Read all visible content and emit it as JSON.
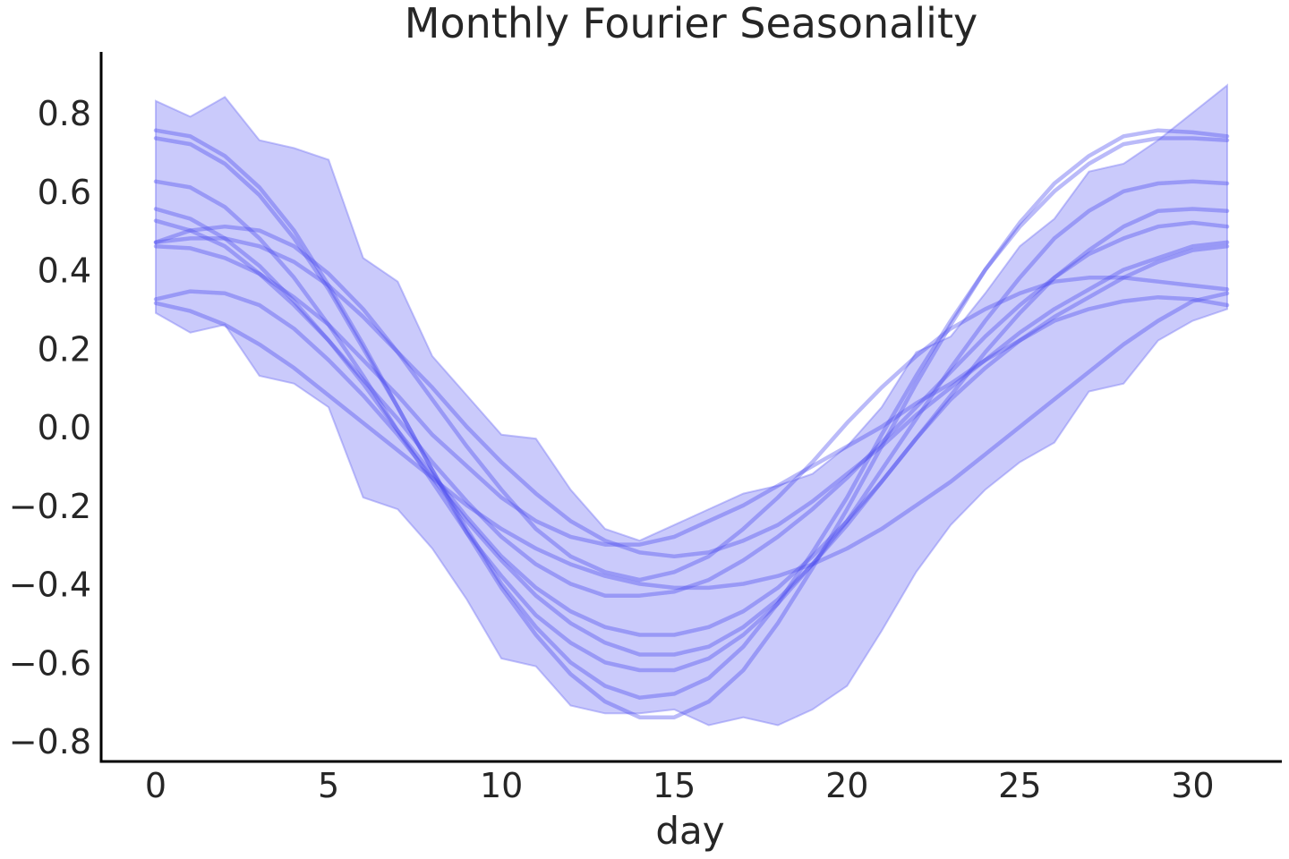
{
  "chart_data": {
    "type": "area",
    "title": "Monthly Fourier Seasonality",
    "xlabel": "day",
    "ylabel": "",
    "xlim": [
      -1.5,
      32.5
    ],
    "ylim": [
      -0.85,
      0.95
    ],
    "x_ticks": [
      0,
      5,
      10,
      15,
      20,
      25,
      30
    ],
    "y_ticks": [
      0.8,
      0.6,
      0.4,
      0.2,
      0.0,
      -0.2,
      -0.4,
      -0.6,
      -0.8
    ],
    "y_tick_labels": [
      "0.8",
      "0.6",
      "0.4",
      "0.2",
      "0.0",
      "−0.2",
      "−0.4",
      "−0.6",
      "−0.8"
    ],
    "grid": false,
    "colors": {
      "band": "#7b7bf5",
      "line": "#4a4aee",
      "axis": "#000000",
      "text": "#262626"
    },
    "x": [
      0,
      1,
      2,
      3,
      4,
      5,
      6,
      7,
      8,
      9,
      10,
      11,
      12,
      13,
      14,
      15,
      16,
      17,
      18,
      19,
      20,
      21,
      22,
      23,
      24,
      25,
      26,
      27,
      28,
      29,
      30,
      31
    ],
    "band": {
      "upper": [
        0.83,
        0.79,
        0.84,
        0.73,
        0.71,
        0.68,
        0.43,
        0.37,
        0.18,
        0.08,
        -0.02,
        -0.03,
        -0.16,
        -0.26,
        -0.29,
        -0.25,
        -0.21,
        -0.17,
        -0.15,
        -0.12,
        -0.05,
        0.05,
        0.19,
        0.23,
        0.34,
        0.46,
        0.53,
        0.65,
        0.67,
        0.73,
        0.8,
        0.87
      ],
      "lower": [
        0.29,
        0.24,
        0.26,
        0.13,
        0.11,
        0.05,
        -0.18,
        -0.21,
        -0.31,
        -0.44,
        -0.59,
        -0.61,
        -0.71,
        -0.73,
        -0.73,
        -0.72,
        -0.76,
        -0.74,
        -0.76,
        -0.72,
        -0.66,
        -0.52,
        -0.37,
        -0.25,
        -0.16,
        -0.09,
        -0.04,
        0.09,
        0.11,
        0.22,
        0.27,
        0.3
      ]
    },
    "series": [
      {
        "values": [
          0.755,
          0.74,
          0.69,
          0.61,
          0.5,
          0.36,
          0.21,
          0.05,
          -0.11,
          -0.27,
          -0.41,
          -0.53,
          -0.63,
          -0.7,
          -0.74,
          -0.74,
          -0.7,
          -0.62,
          -0.5,
          -0.36,
          -0.21,
          -0.05,
          0.11,
          0.26,
          0.4,
          0.52,
          0.62,
          0.69,
          0.74,
          0.755,
          0.75,
          0.74
        ]
      },
      {
        "values": [
          0.735,
          0.72,
          0.67,
          0.59,
          0.48,
          0.35,
          0.2,
          0.05,
          -0.11,
          -0.26,
          -0.4,
          -0.51,
          -0.6,
          -0.66,
          -0.69,
          -0.68,
          -0.64,
          -0.56,
          -0.45,
          -0.32,
          -0.18,
          -0.02,
          0.13,
          0.27,
          0.4,
          0.51,
          0.6,
          0.67,
          0.72,
          0.735,
          0.735,
          0.73
        ]
      },
      {
        "values": [
          0.625,
          0.61,
          0.56,
          0.48,
          0.38,
          0.26,
          0.13,
          -0.01,
          -0.14,
          -0.27,
          -0.38,
          -0.48,
          -0.55,
          -0.6,
          -0.62,
          -0.62,
          -0.59,
          -0.53,
          -0.45,
          -0.35,
          -0.24,
          -0.11,
          0.02,
          0.15,
          0.27,
          0.38,
          0.48,
          0.55,
          0.6,
          0.62,
          0.625,
          0.62
        ]
      },
      {
        "values": [
          0.555,
          0.53,
          0.48,
          0.41,
          0.32,
          0.22,
          0.11,
          -0.01,
          -0.12,
          -0.23,
          -0.33,
          -0.41,
          -0.47,
          -0.51,
          -0.53,
          -0.53,
          -0.51,
          -0.47,
          -0.41,
          -0.33,
          -0.24,
          -0.14,
          -0.03,
          0.08,
          0.19,
          0.29,
          0.38,
          0.45,
          0.51,
          0.55,
          0.555,
          0.55
        ]
      },
      {
        "values": [
          0.525,
          0.5,
          0.46,
          0.39,
          0.31,
          0.22,
          0.12,
          0.02,
          -0.09,
          -0.19,
          -0.28,
          -0.35,
          -0.4,
          -0.43,
          -0.43,
          -0.42,
          -0.39,
          -0.34,
          -0.28,
          -0.21,
          -0.13,
          -0.04,
          0.05,
          0.14,
          0.23,
          0.31,
          0.38,
          0.44,
          0.48,
          0.51,
          0.52,
          0.51
        ]
      },
      {
        "values": [
          0.47,
          0.48,
          0.48,
          0.46,
          0.42,
          0.36,
          0.28,
          0.19,
          0.1,
          0.0,
          -0.09,
          -0.17,
          -0.24,
          -0.29,
          -0.32,
          -0.33,
          -0.32,
          -0.29,
          -0.25,
          -0.19,
          -0.12,
          -0.05,
          0.03,
          0.1,
          0.17,
          0.24,
          0.3,
          0.35,
          0.4,
          0.43,
          0.46,
          0.47
        ]
      },
      {
        "values": [
          0.47,
          0.5,
          0.51,
          0.5,
          0.46,
          0.39,
          0.3,
          0.19,
          0.07,
          -0.05,
          -0.16,
          -0.26,
          -0.33,
          -0.37,
          -0.39,
          -0.37,
          -0.33,
          -0.26,
          -0.18,
          -0.09,
          0.01,
          0.1,
          0.18,
          0.25,
          0.3,
          0.34,
          0.37,
          0.38,
          0.38,
          0.37,
          0.36,
          0.35
        ]
      },
      {
        "values": [
          0.46,
          0.455,
          0.43,
          0.39,
          0.33,
          0.26,
          0.17,
          0.08,
          -0.02,
          -0.1,
          -0.18,
          -0.24,
          -0.28,
          -0.3,
          -0.3,
          -0.28,
          -0.24,
          -0.2,
          -0.15,
          -0.1,
          -0.05,
          0.0,
          0.06,
          0.11,
          0.17,
          0.22,
          0.28,
          0.33,
          0.38,
          0.42,
          0.45,
          0.46
        ]
      },
      {
        "values": [
          0.325,
          0.345,
          0.34,
          0.31,
          0.25,
          0.17,
          0.08,
          -0.02,
          -0.13,
          -0.24,
          -0.34,
          -0.43,
          -0.5,
          -0.55,
          -0.58,
          -0.58,
          -0.56,
          -0.51,
          -0.44,
          -0.35,
          -0.25,
          -0.14,
          -0.03,
          0.07,
          0.15,
          0.22,
          0.27,
          0.3,
          0.32,
          0.33,
          0.325,
          0.31
        ]
      },
      {
        "values": [
          0.315,
          0.295,
          0.26,
          0.21,
          0.15,
          0.08,
          0.01,
          -0.06,
          -0.13,
          -0.2,
          -0.26,
          -0.31,
          -0.35,
          -0.38,
          -0.4,
          -0.41,
          -0.41,
          -0.4,
          -0.38,
          -0.35,
          -0.31,
          -0.26,
          -0.2,
          -0.14,
          -0.07,
          0.0,
          0.07,
          0.14,
          0.21,
          0.27,
          0.32,
          0.34
        ]
      }
    ]
  }
}
